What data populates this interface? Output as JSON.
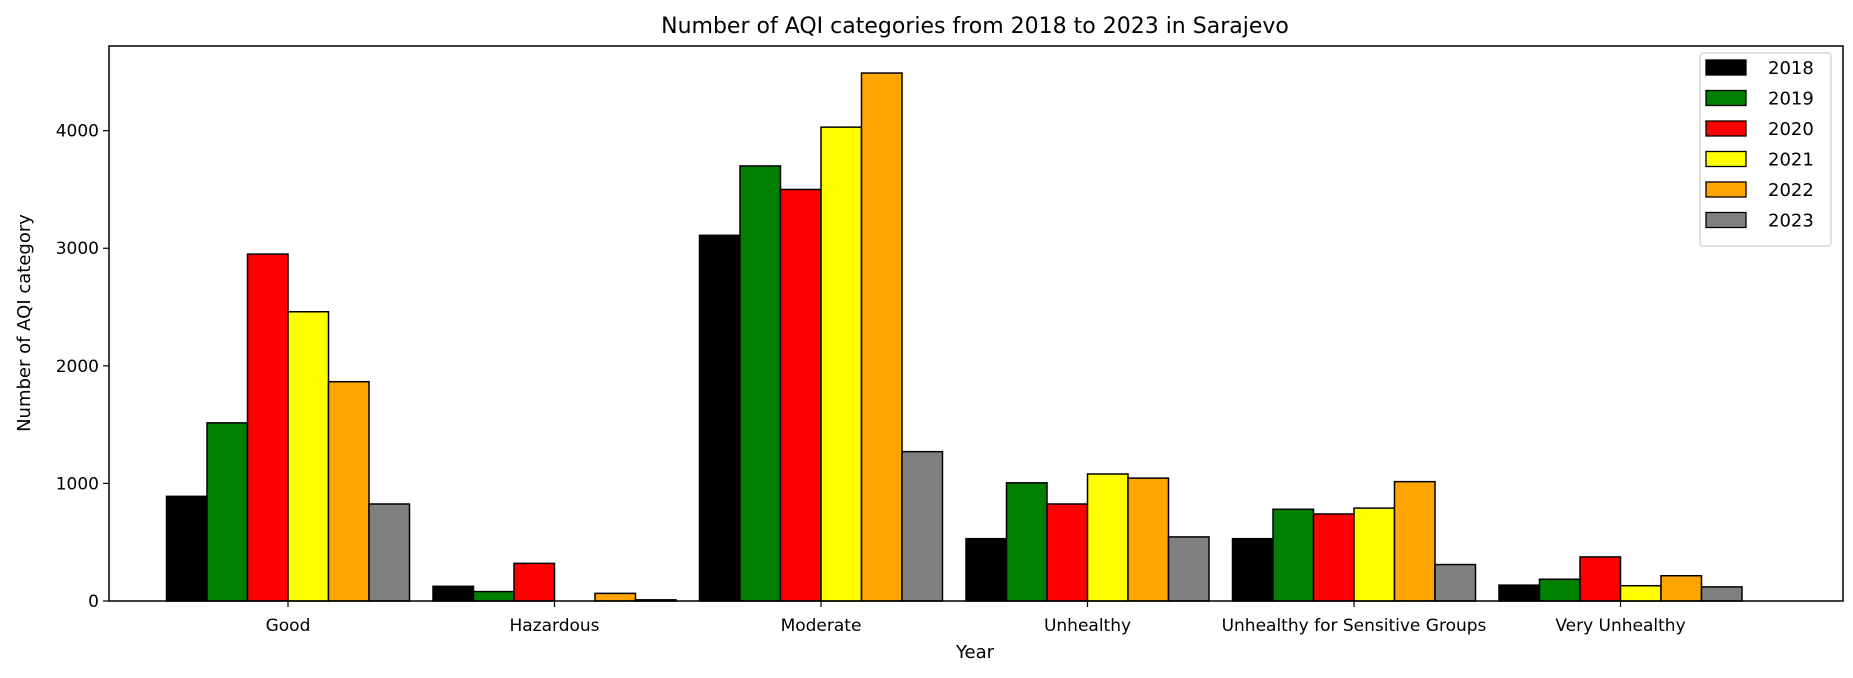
{
  "chart_data": {
    "type": "bar",
    "title": "Number of AQI categories from 2018 to 2023 in Sarajevo",
    "xlabel": "Year",
    "ylabel": "Number of AQI category",
    "ylim": [
      0,
      4720
    ],
    "yticks": [
      0,
      1000,
      2000,
      3000,
      4000
    ],
    "grid": false,
    "legend_position": "top-right",
    "categories": [
      "Good",
      "Hazardous",
      "Moderate",
      "Unhealthy",
      "Unhealthy for Sensitive Groups",
      "Very Unhealthy"
    ],
    "series": [
      {
        "name": "2018",
        "color": "#000000",
        "values": [
          890,
          125,
          3110,
          530,
          530,
          135
        ]
      },
      {
        "name": "2019",
        "color": "#008000",
        "values": [
          1515,
          80,
          3700,
          1005,
          780,
          185
        ]
      },
      {
        "name": "2020",
        "color": "#ff0000",
        "values": [
          2950,
          320,
          3500,
          825,
          740,
          375
        ]
      },
      {
        "name": "2021",
        "color": "#ffff00",
        "values": [
          2460,
          0,
          4030,
          1080,
          790,
          130
        ]
      },
      {
        "name": "2022",
        "color": "#ffa500",
        "values": [
          1865,
          65,
          4490,
          1045,
          1015,
          215
        ]
      },
      {
        "name": "2023",
        "color": "#808080",
        "values": [
          825,
          10,
          1270,
          545,
          310,
          120
        ]
      }
    ]
  }
}
